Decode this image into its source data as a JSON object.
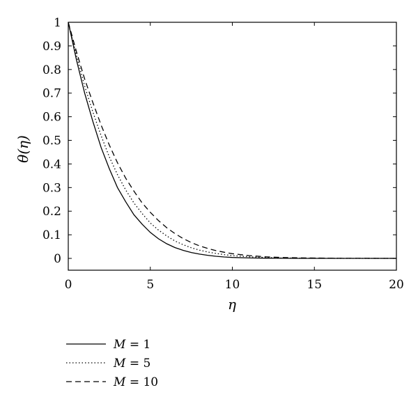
{
  "chart_data": {
    "type": "line",
    "xlabel": "η",
    "ylabel": "θ(η)",
    "xlim": [
      0,
      20
    ],
    "ylim": [
      -0.05,
      1
    ],
    "xticks": [
      "0",
      "5",
      "10",
      "15",
      "20"
    ],
    "yticks": [
      "0",
      "0.1",
      "0.2",
      "0.3",
      "0.4",
      "0.5",
      "0.6",
      "0.7",
      "0.8",
      "0.9",
      "1"
    ],
    "grid": false,
    "legend_position": "below",
    "x": [
      0,
      0.5,
      1,
      1.5,
      2,
      2.5,
      3,
      3.5,
      4,
      4.5,
      5,
      5.5,
      6,
      6.5,
      7,
      7.5,
      8,
      8.5,
      9,
      9.5,
      10,
      11,
      12,
      13,
      14,
      15,
      16,
      17,
      18,
      19,
      20
    ],
    "series": [
      {
        "name": "M = 1",
        "var": "M",
        "val": "1",
        "dash": "solid",
        "values": [
          1.0,
          0.84,
          0.7,
          0.58,
          0.47,
          0.38,
          0.3,
          0.24,
          0.185,
          0.145,
          0.11,
          0.083,
          0.062,
          0.046,
          0.034,
          0.025,
          0.018,
          0.013,
          0.009,
          0.006,
          0.004,
          0.002,
          0.001,
          0.0005,
          0.0002,
          0.0001,
          0,
          0,
          0,
          0,
          0
        ]
      },
      {
        "name": "M = 5",
        "var": "M",
        "val": "5",
        "dash": "dotted",
        "values": [
          1.0,
          0.86,
          0.73,
          0.62,
          0.52,
          0.43,
          0.355,
          0.29,
          0.235,
          0.19,
          0.15,
          0.12,
          0.095,
          0.074,
          0.058,
          0.045,
          0.035,
          0.027,
          0.021,
          0.016,
          0.012,
          0.007,
          0.004,
          0.002,
          0.001,
          0.0006,
          0.0003,
          0.0001,
          0,
          0,
          0
        ]
      },
      {
        "name": "M = 10",
        "var": "M",
        "val": "10",
        "dash": "dashed",
        "values": [
          1.0,
          0.875,
          0.76,
          0.66,
          0.565,
          0.48,
          0.405,
          0.34,
          0.285,
          0.235,
          0.195,
          0.16,
          0.13,
          0.105,
          0.084,
          0.067,
          0.053,
          0.042,
          0.033,
          0.026,
          0.02,
          0.012,
          0.007,
          0.004,
          0.0025,
          0.0015,
          0.0008,
          0.0005,
          0.0003,
          0.0001,
          0
        ]
      }
    ]
  }
}
